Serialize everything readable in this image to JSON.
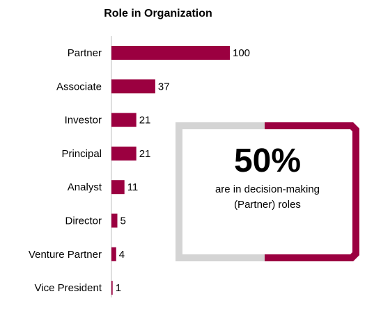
{
  "chart_data": {
    "type": "bar",
    "orientation": "horizontal",
    "title": "Role in Organization",
    "xlabel": "",
    "ylabel": "",
    "categories": [
      "Partner",
      "Associate",
      "Investor",
      "Principal",
      "Analyst",
      "Director",
      "Venture Partner",
      "Vice President"
    ],
    "values": [
      100,
      37,
      21,
      21,
      11,
      5,
      4,
      1
    ],
    "xlim": [
      0,
      100
    ],
    "grid": false,
    "data_labels": true,
    "bar_color": "#9B0040"
  },
  "callout": {
    "value": "50%",
    "line1": "are in decision-making",
    "line2": "(Partner) roles",
    "accent_color": "#9B0040",
    "neutral_color": "#D4D4D4",
    "accent_fraction": 0.5
  }
}
